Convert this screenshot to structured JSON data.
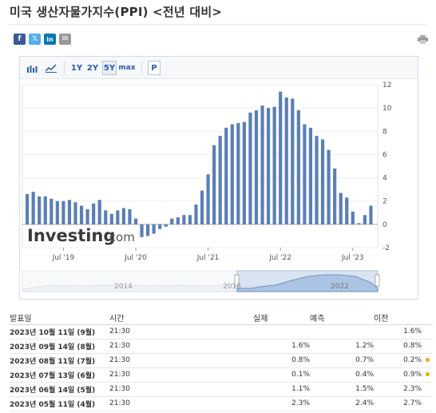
{
  "page": {
    "title": "미국 생산자물가지수(PPI) <전년 대비>"
  },
  "share": [
    {
      "name": "facebook",
      "glyph": "f"
    },
    {
      "name": "twitter",
      "glyph": "𝕏"
    },
    {
      "name": "linkedin",
      "glyph": "in"
    },
    {
      "name": "email",
      "glyph": "✉"
    }
  ],
  "toolbar": {
    "bar_icon": "bar-chart-icon",
    "line_icon": "line-chart-icon",
    "ranges": [
      "1Y",
      "2Y",
      "5Y",
      "max"
    ],
    "selected_range": "5Y",
    "p_label": "P"
  },
  "watermark": {
    "brand": "Investing",
    "suffix": ".com"
  },
  "navigator": {
    "labels": [
      "2014",
      "2018",
      "2022"
    ]
  },
  "chart_data": {
    "type": "bar",
    "title": "",
    "xlabel": "",
    "ylabel": "",
    "x_tick_labels": [
      "Jul '19",
      "Jul '20",
      "Jul '21",
      "Jul '22",
      "Jul '23"
    ],
    "y_ticks": [
      -2,
      0,
      2,
      4,
      6,
      8,
      10,
      12
    ],
    "ylim": [
      -2,
      12
    ],
    "grid": true,
    "axis_position": "right",
    "bar_color": "#5b7fb5",
    "values": [
      2.6,
      2.8,
      2.4,
      2.4,
      2.2,
      2.0,
      2.0,
      2.1,
      1.9,
      1.6,
      1.3,
      1.8,
      2.1,
      1.2,
      0.9,
      1.2,
      1.4,
      1.3,
      0.5,
      -1.1,
      -1.0,
      -0.8,
      -0.4,
      -0.2,
      0.5,
      0.6,
      0.8,
      0.8,
      1.7,
      2.9,
      4.3,
      6.8,
      7.6,
      8.3,
      8.6,
      8.7,
      8.8,
      9.6,
      9.8,
      10.2,
      10.0,
      10.1,
      11.4,
      10.9,
      10.8,
      9.8,
      8.6,
      8.3,
      7.6,
      7.3,
      6.4,
      4.8,
      2.7,
      2.3,
      1.1,
      0.1,
      0.8,
      1.6
    ]
  },
  "table": {
    "headers": {
      "date": "발표일",
      "time": "시간",
      "actual": "실제",
      "forecast": "예측",
      "previous": "이전"
    },
    "rows": [
      {
        "date": "2023년 10월 11일 (9월)",
        "time": "21:30",
        "actual": "",
        "forecast": "",
        "previous": "1.6%",
        "actual_color": "",
        "prev_color": "",
        "flag": false
      },
      {
        "date": "2023년 09월 14일 (8월)",
        "time": "21:30",
        "actual": "1.6%",
        "forecast": "1.2%",
        "previous": "0.8%",
        "actual_color": "neg",
        "prev_color": "",
        "flag": false
      },
      {
        "date": "2023년 08월 11일 (7월)",
        "time": "21:30",
        "actual": "0.8%",
        "forecast": "0.7%",
        "previous": "0.2%",
        "actual_color": "neg",
        "prev_color": "neg",
        "flag": true
      },
      {
        "date": "2023년 07월 13일 (6월)",
        "time": "21:30",
        "actual": "0.1%",
        "forecast": "0.4%",
        "previous": "0.9%",
        "actual_color": "pos",
        "prev_color": "pos",
        "flag": true
      },
      {
        "date": "2023년 06월 14일 (5월)",
        "time": "21:30",
        "actual": "1.1%",
        "forecast": "1.5%",
        "previous": "2.3%",
        "actual_color": "pos",
        "prev_color": "",
        "flag": false
      },
      {
        "date": "2023년 05월 11일 (4월)",
        "time": "21:30",
        "actual": "2.3%",
        "forecast": "2.4%",
        "previous": "2.7%",
        "actual_color": "pos",
        "prev_color": "",
        "flag": false
      }
    ]
  }
}
